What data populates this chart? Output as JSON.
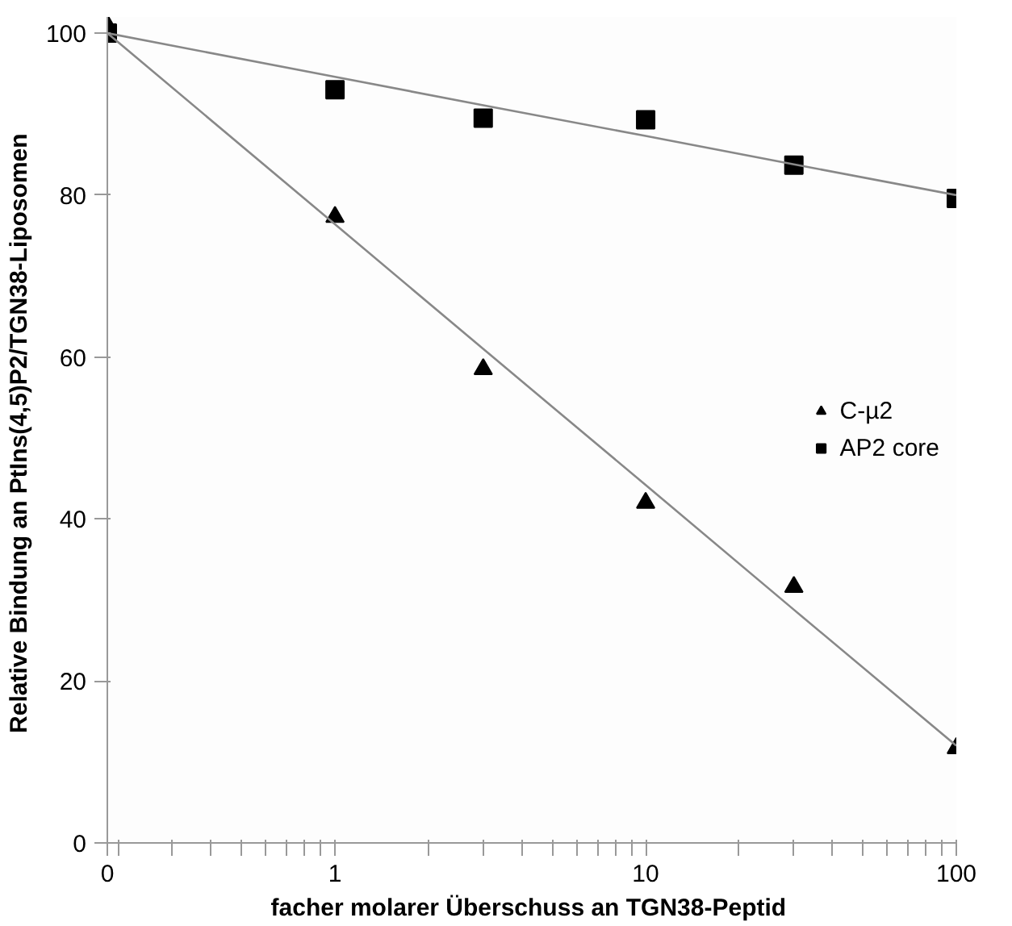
{
  "chart_data": {
    "type": "scatter",
    "xlabel": "facher  molarer Überschuss an TGN38-Peptid",
    "ylabel": "Relative Bindung  an PtIns(4,5)P2/TGN38-Liposomen",
    "log": "x",
    "xlim": [
      0.185,
      100
    ],
    "ylim": [
      0,
      102
    ],
    "xticks": [
      {
        "value": 0.185,
        "label": "0"
      },
      {
        "value": 0.2,
        "label": null
      },
      {
        "value": 0.3,
        "label": null
      },
      {
        "value": 0.4,
        "label": null
      },
      {
        "value": 0.5,
        "label": null
      },
      {
        "value": 0.6,
        "label": null
      },
      {
        "value": 0.7,
        "label": null
      },
      {
        "value": 0.8,
        "label": null
      },
      {
        "value": 0.9,
        "label": null
      },
      1,
      {
        "value": 2,
        "label": null
      },
      {
        "value": 3,
        "label": null
      },
      {
        "value": 4,
        "label": null
      },
      {
        "value": 5,
        "label": null
      },
      {
        "value": 6,
        "label": null
      },
      {
        "value": 7,
        "label": null
      },
      {
        "value": 8,
        "label": null
      },
      {
        "value": 9,
        "label": null
      },
      10,
      {
        "value": 20,
        "label": null
      },
      {
        "value": 30,
        "label": null
      },
      {
        "value": 40,
        "label": null
      },
      {
        "value": 50,
        "label": null
      },
      {
        "value": 60,
        "label": null
      },
      {
        "value": 70,
        "label": null
      },
      {
        "value": 80,
        "label": null
      },
      {
        "value": 90,
        "label": null
      },
      100
    ],
    "yticks": [
      0,
      20,
      40,
      60,
      80,
      100
    ],
    "grid": false,
    "legend": "right",
    "x": [
      0.185,
      1,
      3,
      10,
      30,
      100
    ],
    "series": [
      {
        "name": "C-µ2",
        "marker": "triangle",
        "color": "#000000",
        "values": [
          101,
          77.3,
          58.5,
          42,
          31.6,
          11.7
        ]
      },
      {
        "name": "AP2 core",
        "marker": "square",
        "color": "#000000",
        "values": [
          100,
          93,
          89.5,
          89.3,
          83.7,
          79.6
        ]
      },
      {
        "type": "line",
        "color": "#888888",
        "values": [
          100,
          76.4,
          61,
          44.2,
          28.8,
          12
        ]
      },
      {
        "type": "line",
        "color": "#888888",
        "values": [
          100,
          94.6,
          91.1,
          87.3,
          83.8,
          80
        ]
      }
    ]
  }
}
